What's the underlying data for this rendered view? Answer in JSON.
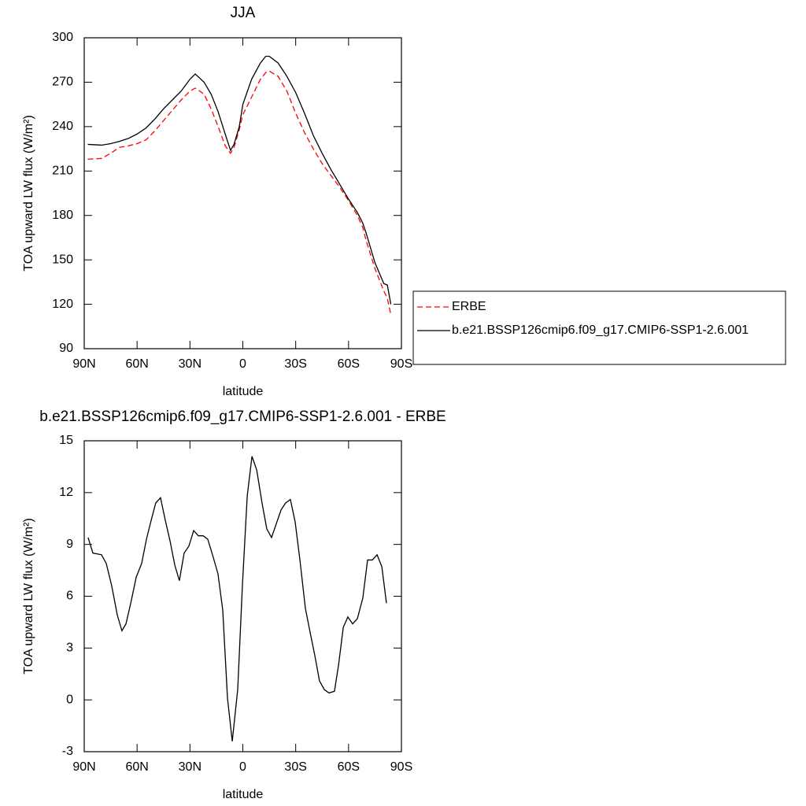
{
  "chart_data": [
    {
      "type": "line",
      "title": "JJA",
      "xlabel": "latitude",
      "ylabel": "TOA upward LW flux (W/m²)",
      "x": [
        88,
        80,
        75,
        70,
        65,
        60,
        55,
        50,
        45,
        40,
        35,
        30,
        27,
        22,
        18,
        14,
        10,
        7,
        5,
        2,
        0,
        -5,
        -10,
        -13,
        -15,
        -20,
        -25,
        -30,
        -35,
        -40,
        -45,
        -50,
        -55,
        -60,
        -65,
        -68,
        -70,
        -75,
        -80,
        -82,
        -84
      ],
      "xlim": [
        90,
        -90
      ],
      "xticks": [
        {
          "value": 90,
          "label": "90N"
        },
        {
          "value": 60,
          "label": "60N"
        },
        {
          "value": 30,
          "label": "30N"
        },
        0,
        {
          "value": -30,
          "label": "30S"
        },
        {
          "value": -60,
          "label": "60S"
        },
        {
          "value": -90,
          "label": "90S"
        }
      ],
      "ylim": [
        90,
        300
      ],
      "yticks": [
        90,
        120,
        150,
        180,
        210,
        240,
        270,
        300
      ],
      "legend": "right",
      "series": [
        {
          "name": "ERBE",
          "color": "#ff0000",
          "dash": true,
          "values": [
            218,
            218.5,
            222,
            226,
            227,
            228.5,
            231,
            237,
            244,
            251,
            258,
            264,
            266,
            262,
            252,
            240,
            227,
            222,
            226,
            238,
            248,
            260,
            272,
            276.5,
            277.5,
            274,
            264,
            249,
            236,
            225,
            215,
            207,
            199,
            190,
            180,
            172,
            163,
            144,
            129,
            124,
            113
          ]
        },
        {
          "name": "b.e21.BSSP126cmip6.f09_g17.CMIP6-SSP1-2.6.001",
          "color": "#000000",
          "dash": false,
          "values": [
            228,
            227.5,
            228.5,
            230,
            232,
            235,
            239,
            245,
            252,
            258,
            264,
            272,
            275.5,
            270,
            262,
            250,
            235,
            224,
            228,
            240,
            255,
            272,
            283,
            287.5,
            287.5,
            283,
            274,
            263,
            249,
            234,
            222,
            211,
            201,
            191,
            182,
            175,
            168,
            148,
            134,
            133,
            120
          ]
        }
      ]
    },
    {
      "type": "line",
      "title": "b.e21.BSSP126cmip6.f09_g17.CMIP6-SSP1-2.6.001 - ERBE",
      "xlabel": "latitude",
      "ylabel": "TOA upward LW flux (W/m²)",
      "x": [
        87.8,
        85.1,
        80.2,
        77.5,
        74.4,
        71.2,
        68.6,
        66.3,
        63.6,
        60.5,
        57.4,
        54.7,
        52,
        49.4,
        46.7,
        44,
        41.3,
        38.6,
        36,
        33.3,
        30.6,
        27.9,
        25.2,
        22.5,
        19.9,
        17.2,
        14.1,
        11.4,
        8.7,
        6,
        2.9,
        0.2,
        -2.5,
        -5.2,
        -7.9,
        -10.9,
        -13.6,
        -16.3,
        -19,
        -21.7,
        -24.3,
        -27,
        -29.7,
        -32.4,
        -35.5,
        -38.2,
        -40.8,
        -43.5,
        -46.2,
        -48.9,
        -52,
        -54.3,
        -57,
        -59.6,
        -62.3,
        -65,
        -68.1,
        -70.8,
        -73.5,
        -76.2,
        -78.9,
        -81.5
      ],
      "xlim": [
        90,
        -90
      ],
      "xticks": [
        {
          "value": 90,
          "label": "90N"
        },
        {
          "value": 60,
          "label": "60N"
        },
        {
          "value": 30,
          "label": "30N"
        },
        0,
        {
          "value": -30,
          "label": "30S"
        },
        {
          "value": -60,
          "label": "60S"
        },
        {
          "value": -90,
          "label": "90S"
        }
      ],
      "ylim": [
        -3,
        15
      ],
      "yticks": [
        -3,
        0,
        3,
        6,
        9,
        12,
        15
      ],
      "series": [
        {
          "color": "#000000",
          "dash": false,
          "values": [
            9.4,
            8.5,
            8.4,
            7.9,
            6.6,
            4.9,
            4.0,
            4.4,
            5.6,
            7.1,
            7.9,
            9.3,
            10.4,
            11.4,
            11.7,
            10.4,
            9.2,
            7.8,
            6.9,
            8.5,
            8.9,
            9.8,
            9.5,
            9.5,
            9.3,
            8.4,
            7.3,
            5.2,
            0.1,
            -2.4,
            0.6,
            6.7,
            11.8,
            14.1,
            13.3,
            11.4,
            9.9,
            9.4,
            10.2,
            11.0,
            11.4,
            11.6,
            10.3,
            8.1,
            5.3,
            3.9,
            2.6,
            1.1,
            0.6,
            0.4,
            0.5,
            2.0,
            4.2,
            4.8,
            4.4,
            4.7,
            5.9,
            8.1,
            8.1,
            8.4,
            7.7,
            5.6
          ]
        }
      ]
    }
  ]
}
